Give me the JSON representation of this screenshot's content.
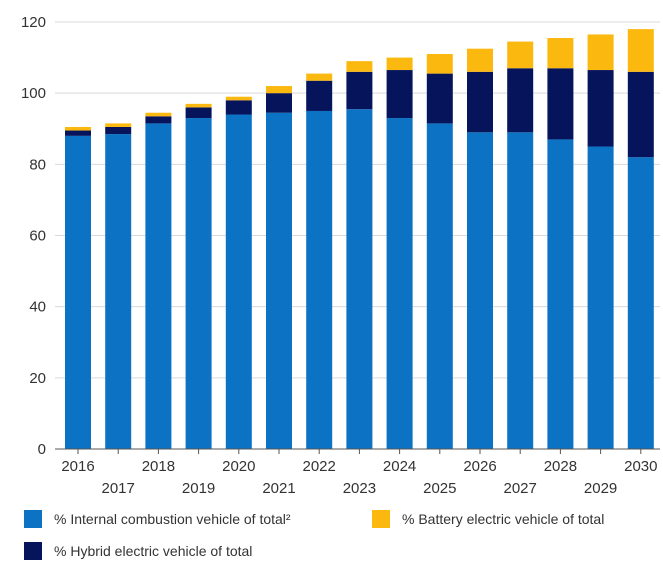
{
  "chart_data": {
    "type": "bar",
    "stacked": true,
    "categories": [
      "2016",
      "2017",
      "2018",
      "2019",
      "2020",
      "2021",
      "2022",
      "2023",
      "2024",
      "2025",
      "2026",
      "2027",
      "2028",
      "2029",
      "2030"
    ],
    "series": [
      {
        "name": "% Internal combustion vehicle of total²",
        "color": "#0b72c4",
        "values": [
          88,
          88.5,
          91.5,
          93,
          94,
          94.5,
          95,
          95.5,
          93,
          91.5,
          89,
          89,
          87,
          85,
          82
        ]
      },
      {
        "name": "% Hybrid electric vehicle of total",
        "color": "#06145c",
        "values": [
          1.5,
          2,
          2,
          3,
          4,
          5.5,
          8.5,
          10.5,
          13.5,
          14,
          17,
          18,
          20,
          21.5,
          24
        ]
      },
      {
        "name": "% Battery electric vehicle of total",
        "color": "#fbb90f",
        "values": [
          1,
          1,
          1,
          1,
          1,
          2,
          2,
          3,
          3.5,
          5.5,
          6.5,
          7.5,
          8.5,
          10,
          12
        ]
      }
    ],
    "ylim": [
      0,
      120
    ],
    "yticks": [
      0,
      20,
      40,
      60,
      80,
      100,
      120
    ],
    "xlabel": "",
    "ylabel": "",
    "grid": "horizontal",
    "legend_position": "bottom"
  }
}
